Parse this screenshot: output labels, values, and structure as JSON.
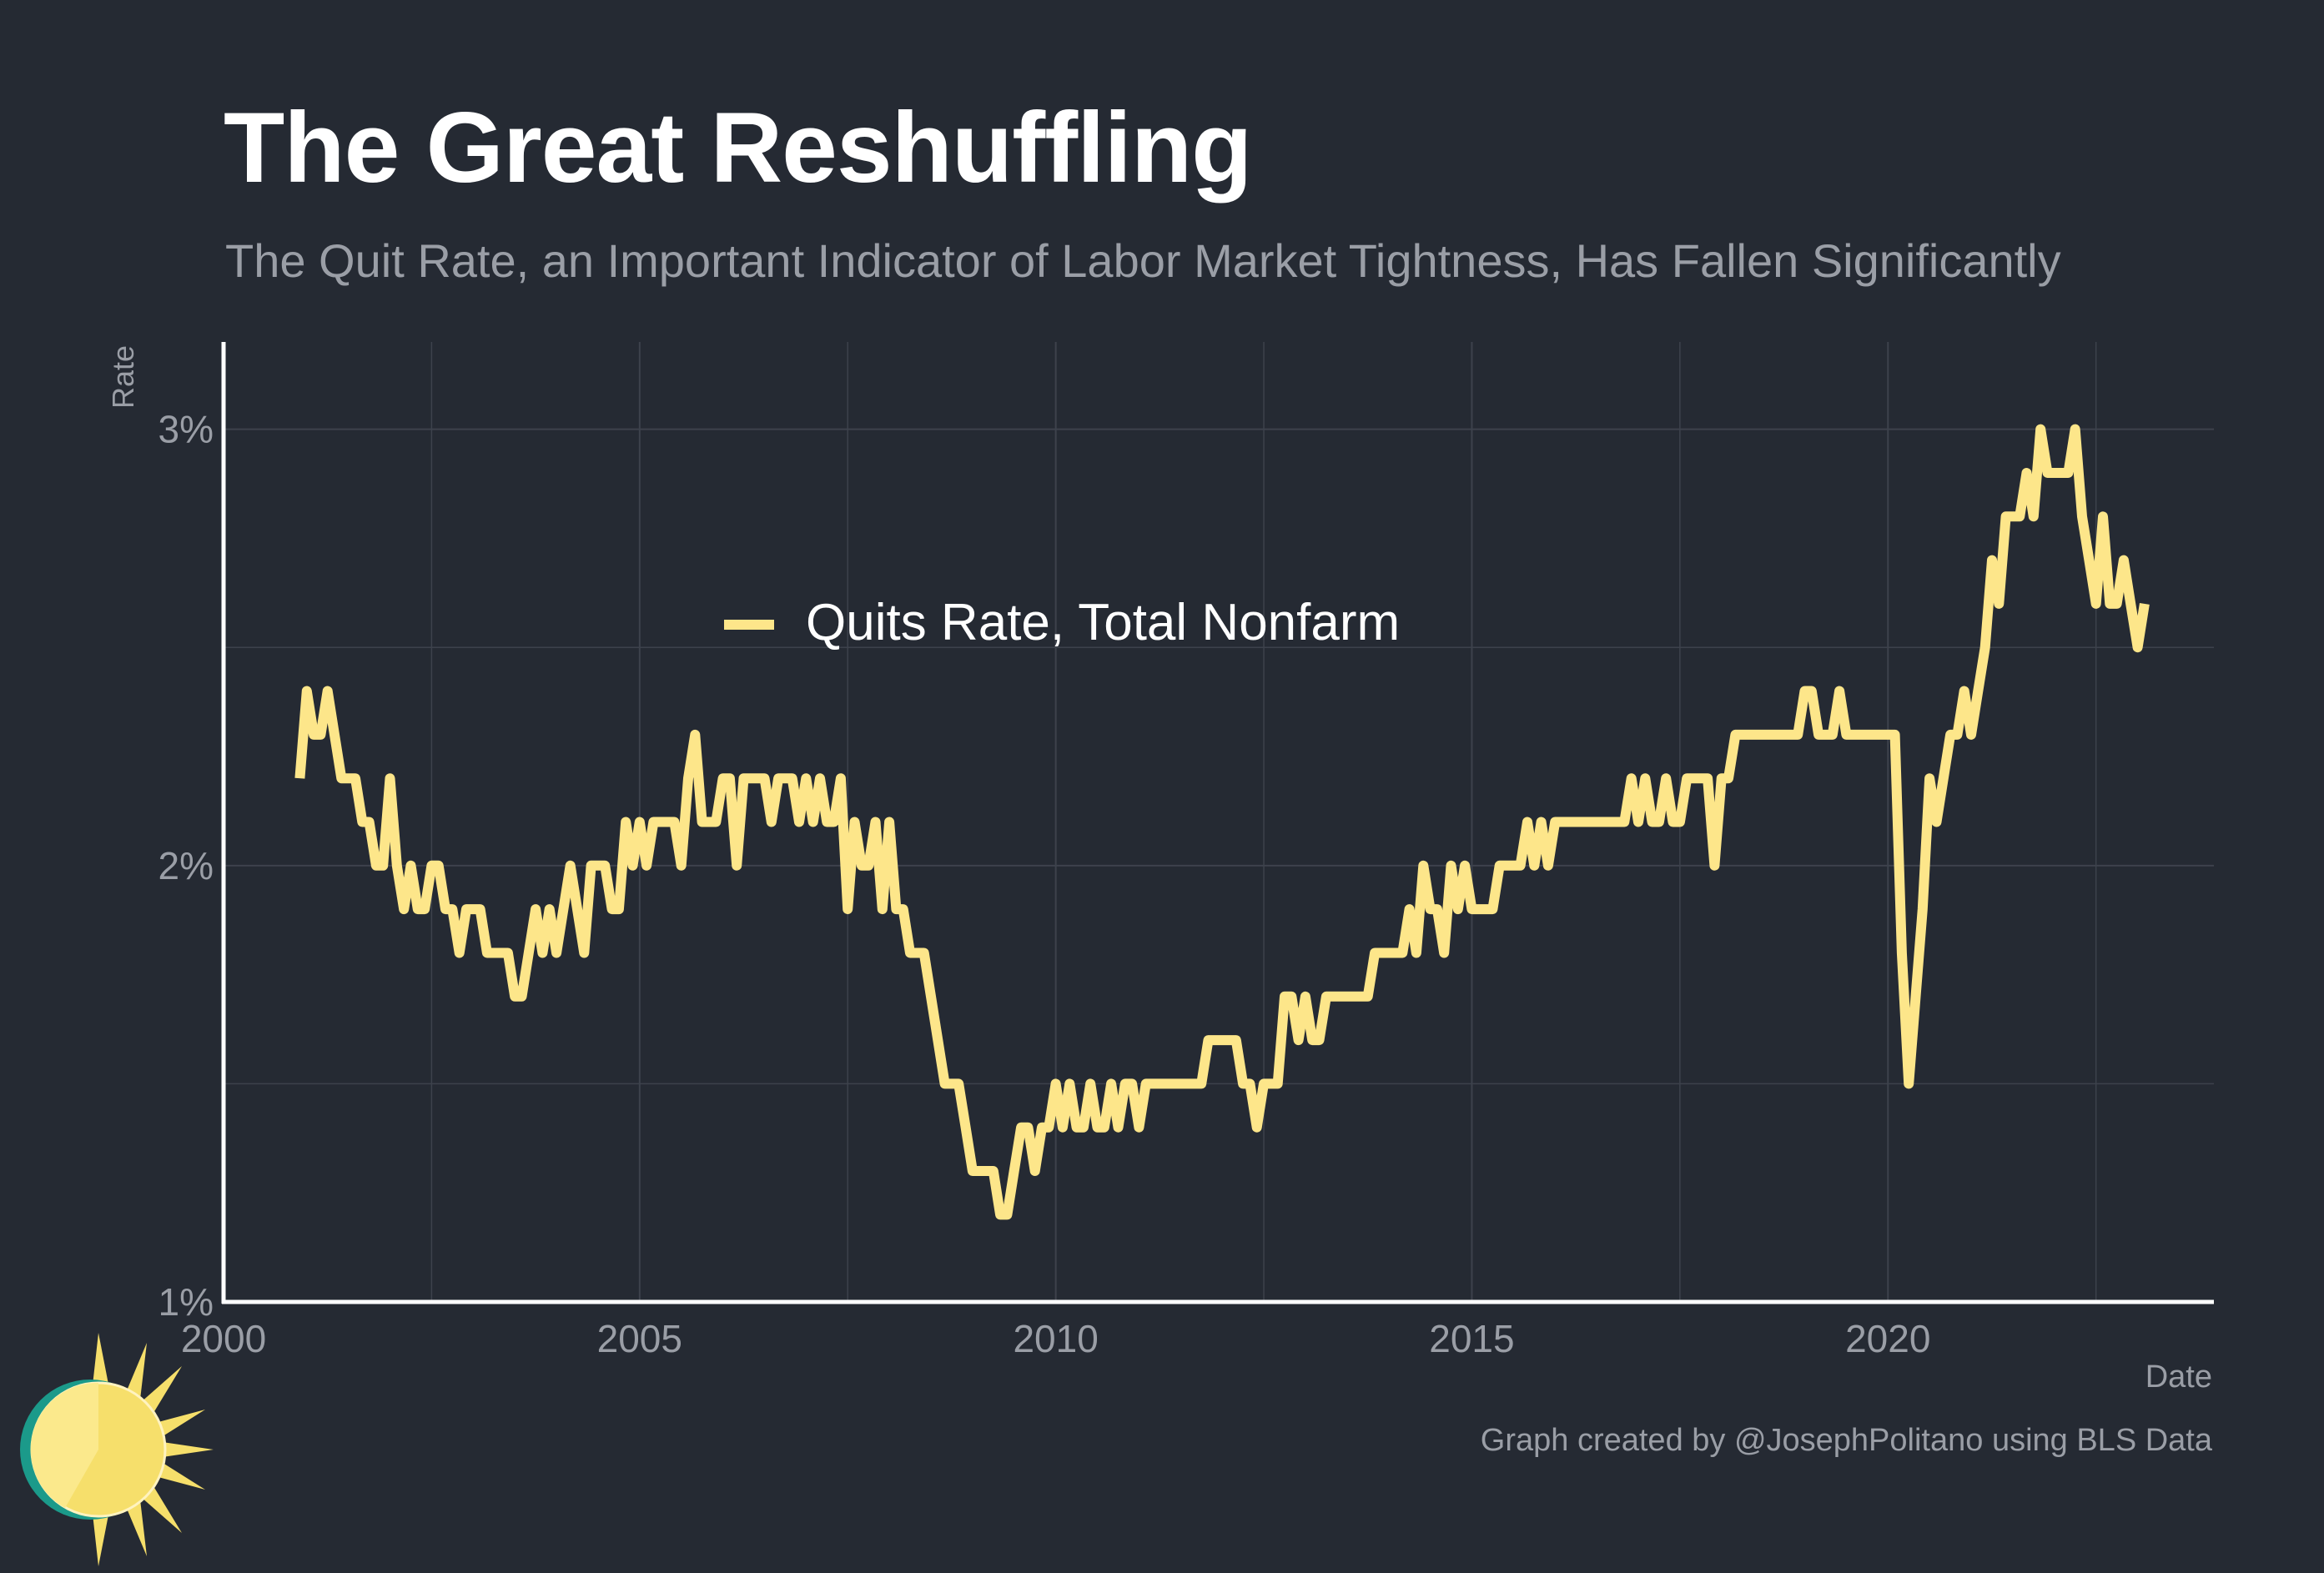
{
  "title": "The Great Reshuffling",
  "subtitle": "The Quit Rate, an Important Indicator of Labor Market Tightness, Has Fallen Significantly",
  "caption": "Graph created by @JosephPolitano using BLS Data",
  "colors": {
    "background": "#252a33",
    "line": "#fde68a",
    "grid": "#3d424c",
    "axis": "#ffffff",
    "muted_text": "#9a9ea6"
  },
  "logo": {
    "icon": "sun-logo-icon"
  },
  "chart_data": {
    "type": "line",
    "xlabel": "Date",
    "ylabel": "Rate",
    "x_range": [
      "2000-01",
      "2023-12"
    ],
    "ylim": [
      1,
      3.2
    ],
    "x_ticks": [
      {
        "date": "2000-01",
        "label": "2000"
      },
      {
        "date": "2005-01",
        "label": "2005"
      },
      {
        "date": "2010-01",
        "label": "2010"
      },
      {
        "date": "2015-01",
        "label": "2015"
      },
      {
        "date": "2020-01",
        "label": "2020"
      }
    ],
    "y_ticks": [
      {
        "value": 1,
        "label": "1%"
      },
      {
        "value": 2,
        "label": "2%"
      },
      {
        "value": 3,
        "label": "3%"
      }
    ],
    "grid": true,
    "legend": {
      "position": "center-left"
    },
    "series": [
      {
        "name": "Quits Rate, Total Nonfarm",
        "points": [
          [
            "2000-12",
            2.2
          ],
          [
            "2001-01",
            2.4
          ],
          [
            "2001-02",
            2.3
          ],
          [
            "2001-03",
            2.3
          ],
          [
            "2001-04",
            2.4
          ],
          [
            "2001-05",
            2.3
          ],
          [
            "2001-06",
            2.2
          ],
          [
            "2001-07",
            2.2
          ],
          [
            "2001-08",
            2.2
          ],
          [
            "2001-09",
            2.1
          ],
          [
            "2001-10",
            2.1
          ],
          [
            "2001-11",
            2.0
          ],
          [
            "2001-12",
            2.0
          ],
          [
            "2002-01",
            2.2
          ],
          [
            "2002-02",
            2.0
          ],
          [
            "2002-03",
            1.9
          ],
          [
            "2002-04",
            2.0
          ],
          [
            "2002-05",
            1.9
          ],
          [
            "2002-06",
            1.9
          ],
          [
            "2002-07",
            2.0
          ],
          [
            "2002-08",
            2.0
          ],
          [
            "2002-09",
            1.9
          ],
          [
            "2002-10",
            1.9
          ],
          [
            "2002-11",
            1.8
          ],
          [
            "2002-12",
            1.9
          ],
          [
            "2003-01",
            1.9
          ],
          [
            "2003-02",
            1.9
          ],
          [
            "2003-03",
            1.8
          ],
          [
            "2003-04",
            1.8
          ],
          [
            "2003-05",
            1.8
          ],
          [
            "2003-06",
            1.8
          ],
          [
            "2003-07",
            1.7
          ],
          [
            "2003-08",
            1.7
          ],
          [
            "2003-09",
            1.8
          ],
          [
            "2003-10",
            1.9
          ],
          [
            "2003-11",
            1.8
          ],
          [
            "2003-12",
            1.9
          ],
          [
            "2004-01",
            1.8
          ],
          [
            "2004-02",
            1.9
          ],
          [
            "2004-03",
            2.0
          ],
          [
            "2004-04",
            1.9
          ],
          [
            "2004-05",
            1.8
          ],
          [
            "2004-06",
            2.0
          ],
          [
            "2004-07",
            2.0
          ],
          [
            "2004-08",
            2.0
          ],
          [
            "2004-09",
            1.9
          ],
          [
            "2004-10",
            1.9
          ],
          [
            "2004-11",
            2.1
          ],
          [
            "2004-12",
            2.0
          ],
          [
            "2005-01",
            2.1
          ],
          [
            "2005-02",
            2.0
          ],
          [
            "2005-03",
            2.1
          ],
          [
            "2005-04",
            2.1
          ],
          [
            "2005-05",
            2.1
          ],
          [
            "2005-06",
            2.1
          ],
          [
            "2005-07",
            2.0
          ],
          [
            "2005-08",
            2.2
          ],
          [
            "2005-09",
            2.3
          ],
          [
            "2005-10",
            2.1
          ],
          [
            "2005-11",
            2.1
          ],
          [
            "2005-12",
            2.1
          ],
          [
            "2006-01",
            2.2
          ],
          [
            "2006-02",
            2.2
          ],
          [
            "2006-03",
            2.0
          ],
          [
            "2006-04",
            2.2
          ],
          [
            "2006-05",
            2.2
          ],
          [
            "2006-06",
            2.2
          ],
          [
            "2006-07",
            2.2
          ],
          [
            "2006-08",
            2.1
          ],
          [
            "2006-09",
            2.2
          ],
          [
            "2006-10",
            2.2
          ],
          [
            "2006-11",
            2.2
          ],
          [
            "2006-12",
            2.1
          ],
          [
            "2007-01",
            2.2
          ],
          [
            "2007-02",
            2.1
          ],
          [
            "2007-03",
            2.2
          ],
          [
            "2007-04",
            2.1
          ],
          [
            "2007-05",
            2.1
          ],
          [
            "2007-06",
            2.2
          ],
          [
            "2007-07",
            1.9
          ],
          [
            "2007-08",
            2.1
          ],
          [
            "2007-09",
            2.0
          ],
          [
            "2007-10",
            2.0
          ],
          [
            "2007-11",
            2.1
          ],
          [
            "2007-12",
            1.9
          ],
          [
            "2008-01",
            2.1
          ],
          [
            "2008-02",
            1.9
          ],
          [
            "2008-03",
            1.9
          ],
          [
            "2008-04",
            1.8
          ],
          [
            "2008-05",
            1.8
          ],
          [
            "2008-06",
            1.8
          ],
          [
            "2008-07",
            1.7
          ],
          [
            "2008-08",
            1.6
          ],
          [
            "2008-09",
            1.5
          ],
          [
            "2008-10",
            1.5
          ],
          [
            "2008-11",
            1.5
          ],
          [
            "2008-12",
            1.4
          ],
          [
            "2009-01",
            1.3
          ],
          [
            "2009-02",
            1.3
          ],
          [
            "2009-03",
            1.3
          ],
          [
            "2009-04",
            1.3
          ],
          [
            "2009-05",
            1.2
          ],
          [
            "2009-06",
            1.2
          ],
          [
            "2009-07",
            1.3
          ],
          [
            "2009-08",
            1.4
          ],
          [
            "2009-09",
            1.4
          ],
          [
            "2009-10",
            1.3
          ],
          [
            "2009-11",
            1.4
          ],
          [
            "2009-12",
            1.4
          ],
          [
            "2010-01",
            1.5
          ],
          [
            "2010-02",
            1.4
          ],
          [
            "2010-03",
            1.5
          ],
          [
            "2010-04",
            1.4
          ],
          [
            "2010-05",
            1.4
          ],
          [
            "2010-06",
            1.5
          ],
          [
            "2010-07",
            1.4
          ],
          [
            "2010-08",
            1.4
          ],
          [
            "2010-09",
            1.5
          ],
          [
            "2010-10",
            1.4
          ],
          [
            "2010-11",
            1.5
          ],
          [
            "2010-12",
            1.5
          ],
          [
            "2011-01",
            1.4
          ],
          [
            "2011-02",
            1.5
          ],
          [
            "2011-03",
            1.5
          ],
          [
            "2011-04",
            1.5
          ],
          [
            "2011-05",
            1.5
          ],
          [
            "2011-06",
            1.5
          ],
          [
            "2011-07",
            1.5
          ],
          [
            "2011-08",
            1.5
          ],
          [
            "2011-09",
            1.5
          ],
          [
            "2011-10",
            1.5
          ],
          [
            "2011-11",
            1.6
          ],
          [
            "2011-12",
            1.6
          ],
          [
            "2012-01",
            1.6
          ],
          [
            "2012-02",
            1.6
          ],
          [
            "2012-03",
            1.6
          ],
          [
            "2012-04",
            1.5
          ],
          [
            "2012-05",
            1.5
          ],
          [
            "2012-06",
            1.4
          ],
          [
            "2012-07",
            1.5
          ],
          [
            "2012-08",
            1.5
          ],
          [
            "2012-09",
            1.5
          ],
          [
            "2012-10",
            1.7
          ],
          [
            "2012-11",
            1.7
          ],
          [
            "2012-12",
            1.6
          ],
          [
            "2013-01",
            1.7
          ],
          [
            "2013-02",
            1.6
          ],
          [
            "2013-03",
            1.6
          ],
          [
            "2013-04",
            1.7
          ],
          [
            "2013-05",
            1.7
          ],
          [
            "2013-06",
            1.7
          ],
          [
            "2013-07",
            1.7
          ],
          [
            "2013-08",
            1.7
          ],
          [
            "2013-09",
            1.7
          ],
          [
            "2013-10",
            1.7
          ],
          [
            "2013-11",
            1.8
          ],
          [
            "2013-12",
            1.8
          ],
          [
            "2014-01",
            1.8
          ],
          [
            "2014-02",
            1.8
          ],
          [
            "2014-03",
            1.8
          ],
          [
            "2014-04",
            1.9
          ],
          [
            "2014-05",
            1.8
          ],
          [
            "2014-06",
            2.0
          ],
          [
            "2014-07",
            1.9
          ],
          [
            "2014-08",
            1.9
          ],
          [
            "2014-09",
            1.8
          ],
          [
            "2014-10",
            2.0
          ],
          [
            "2014-11",
            1.9
          ],
          [
            "2014-12",
            2.0
          ],
          [
            "2015-01",
            1.9
          ],
          [
            "2015-02",
            1.9
          ],
          [
            "2015-03",
            1.9
          ],
          [
            "2015-04",
            1.9
          ],
          [
            "2015-05",
            2.0
          ],
          [
            "2015-06",
            2.0
          ],
          [
            "2015-07",
            2.0
          ],
          [
            "2015-08",
            2.0
          ],
          [
            "2015-09",
            2.1
          ],
          [
            "2015-10",
            2.0
          ],
          [
            "2015-11",
            2.1
          ],
          [
            "2015-12",
            2.0
          ],
          [
            "2016-01",
            2.1
          ],
          [
            "2016-02",
            2.1
          ],
          [
            "2016-03",
            2.1
          ],
          [
            "2016-04",
            2.1
          ],
          [
            "2016-05",
            2.1
          ],
          [
            "2016-06",
            2.1
          ],
          [
            "2016-07",
            2.1
          ],
          [
            "2016-08",
            2.1
          ],
          [
            "2016-09",
            2.1
          ],
          [
            "2016-10",
            2.1
          ],
          [
            "2016-11",
            2.1
          ],
          [
            "2016-12",
            2.2
          ],
          [
            "2017-01",
            2.1
          ],
          [
            "2017-02",
            2.2
          ],
          [
            "2017-03",
            2.1
          ],
          [
            "2017-04",
            2.1
          ],
          [
            "2017-05",
            2.2
          ],
          [
            "2017-06",
            2.1
          ],
          [
            "2017-07",
            2.1
          ],
          [
            "2017-08",
            2.2
          ],
          [
            "2017-09",
            2.2
          ],
          [
            "2017-10",
            2.2
          ],
          [
            "2017-11",
            2.2
          ],
          [
            "2017-12",
            2.0
          ],
          [
            "2018-01",
            2.2
          ],
          [
            "2018-02",
            2.2
          ],
          [
            "2018-03",
            2.3
          ],
          [
            "2018-04",
            2.3
          ],
          [
            "2018-05",
            2.3
          ],
          [
            "2018-06",
            2.3
          ],
          [
            "2018-07",
            2.3
          ],
          [
            "2018-08",
            2.3
          ],
          [
            "2018-09",
            2.3
          ],
          [
            "2018-10",
            2.3
          ],
          [
            "2018-11",
            2.3
          ],
          [
            "2018-12",
            2.3
          ],
          [
            "2019-01",
            2.4
          ],
          [
            "2019-02",
            2.4
          ],
          [
            "2019-03",
            2.3
          ],
          [
            "2019-04",
            2.3
          ],
          [
            "2019-05",
            2.3
          ],
          [
            "2019-06",
            2.4
          ],
          [
            "2019-07",
            2.3
          ],
          [
            "2019-08",
            2.3
          ],
          [
            "2019-09",
            2.3
          ],
          [
            "2019-10",
            2.3
          ],
          [
            "2019-11",
            2.3
          ],
          [
            "2019-12",
            2.3
          ],
          [
            "2020-01",
            2.3
          ],
          [
            "2020-02",
            2.3
          ],
          [
            "2020-03",
            1.8
          ],
          [
            "2020-04",
            1.5
          ],
          [
            "2020-05",
            1.7
          ],
          [
            "2020-06",
            1.9
          ],
          [
            "2020-07",
            2.2
          ],
          [
            "2020-08",
            2.1
          ],
          [
            "2020-09",
            2.2
          ],
          [
            "2020-10",
            2.3
          ],
          [
            "2020-11",
            2.3
          ],
          [
            "2020-12",
            2.4
          ],
          [
            "2021-01",
            2.3
          ],
          [
            "2021-02",
            2.4
          ],
          [
            "2021-03",
            2.5
          ],
          [
            "2021-04",
            2.7
          ],
          [
            "2021-05",
            2.6
          ],
          [
            "2021-06",
            2.8
          ],
          [
            "2021-07",
            2.8
          ],
          [
            "2021-08",
            2.8
          ],
          [
            "2021-09",
            2.9
          ],
          [
            "2021-10",
            2.8
          ],
          [
            "2021-11",
            3.0
          ],
          [
            "2021-12",
            2.9
          ],
          [
            "2022-01",
            2.9
          ],
          [
            "2022-02",
            2.9
          ],
          [
            "2022-03",
            2.9
          ],
          [
            "2022-04",
            3.0
          ],
          [
            "2022-05",
            2.8
          ],
          [
            "2022-06",
            2.7
          ],
          [
            "2022-07",
            2.6
          ],
          [
            "2022-08",
            2.8
          ],
          [
            "2022-09",
            2.6
          ],
          [
            "2022-10",
            2.6
          ],
          [
            "2022-11",
            2.7
          ],
          [
            "2022-12",
            2.6
          ],
          [
            "2023-01",
            2.5
          ],
          [
            "2023-02",
            2.6
          ]
        ]
      }
    ]
  }
}
